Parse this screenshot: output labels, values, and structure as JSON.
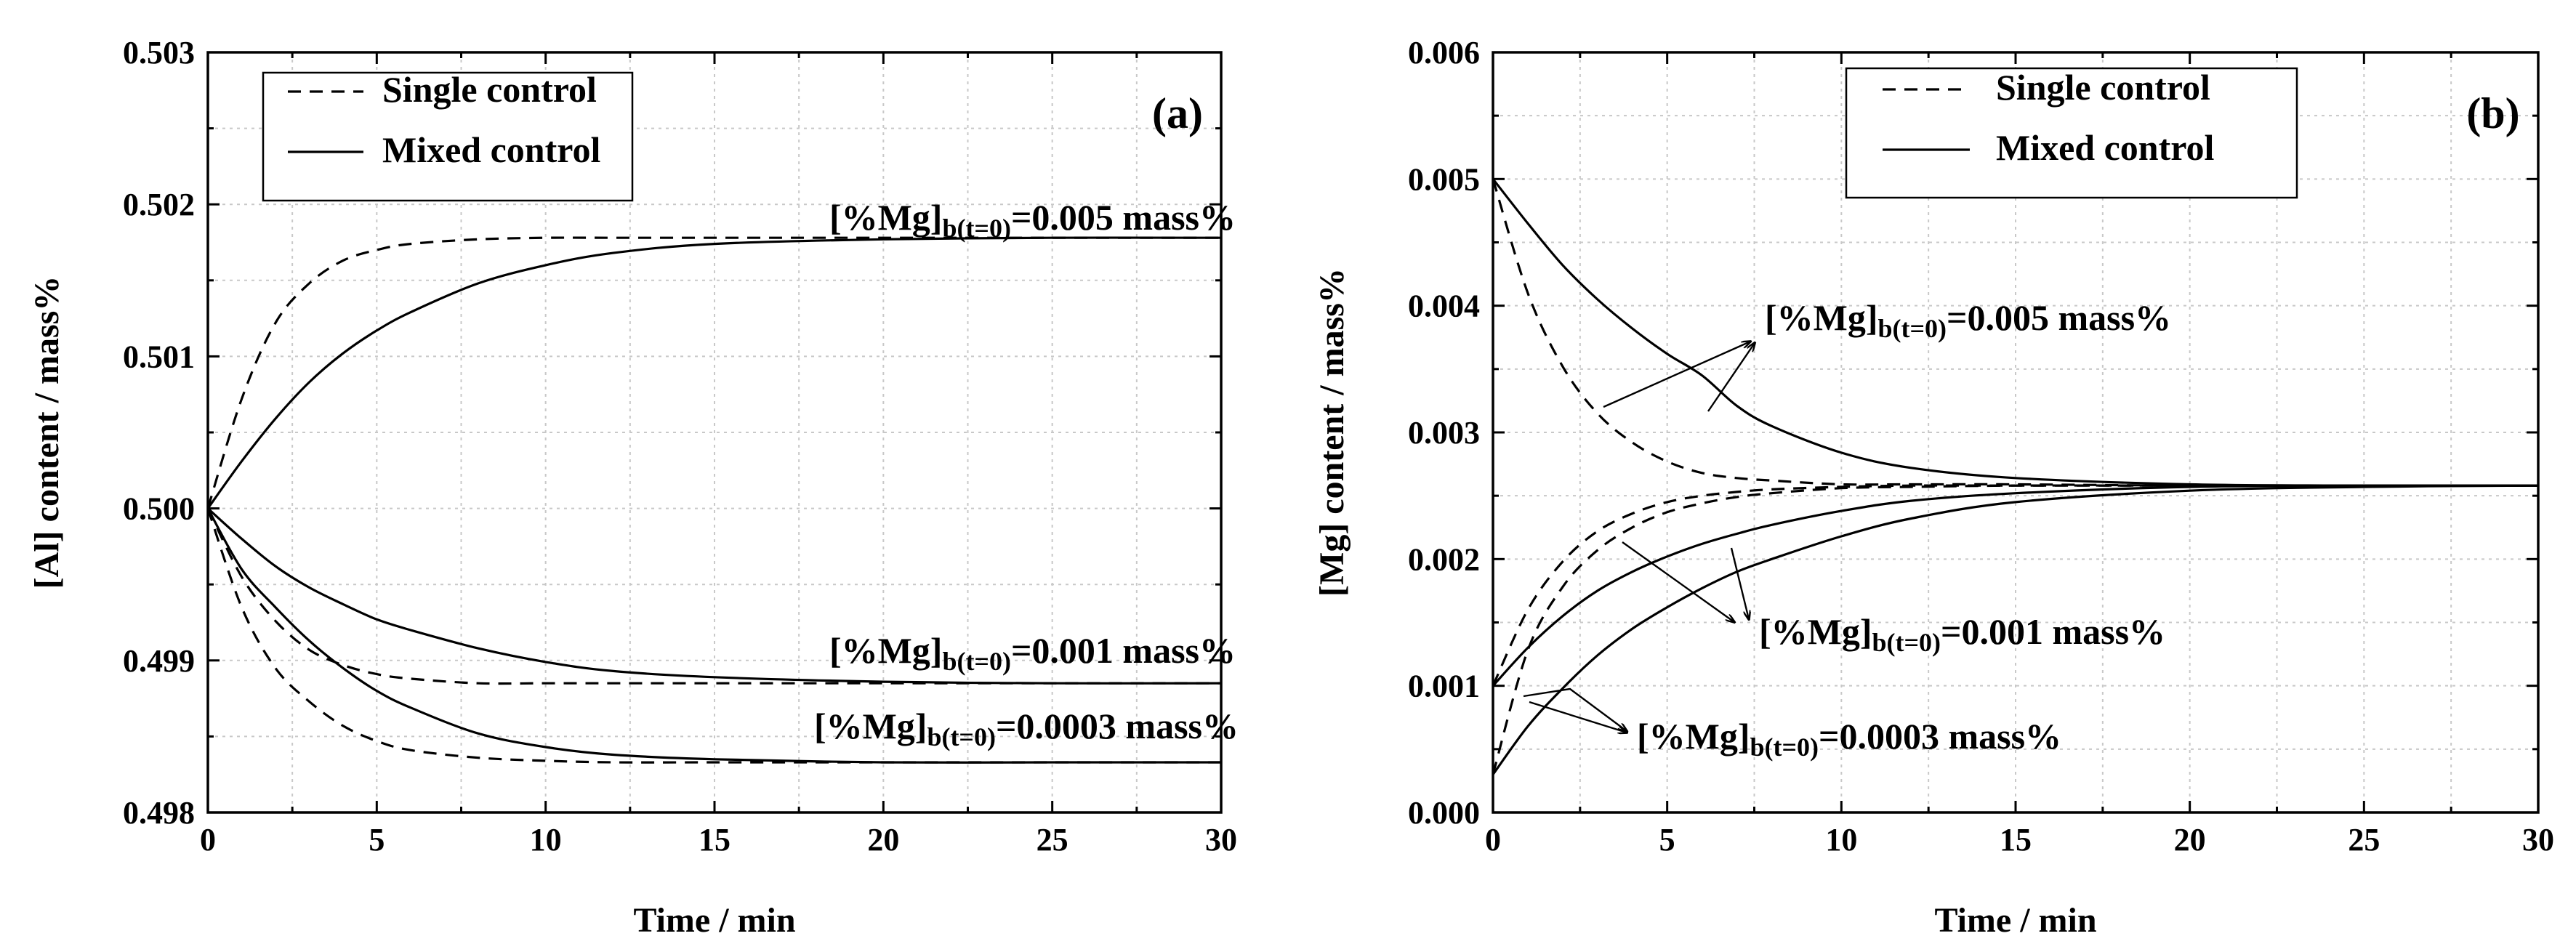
{
  "chart_data": [
    {
      "type": "line",
      "panel_label": "(a)",
      "xlabel": "Time / min",
      "ylabel": "[Al] content / mass%",
      "xlim": [
        0,
        30
      ],
      "ylim": [
        0.498,
        0.503
      ],
      "xticks": [
        "0",
        "5",
        "10",
        "15",
        "20",
        "25",
        "30"
      ],
      "yticks": [
        "0.498",
        "0.499",
        "0.500",
        "0.501",
        "0.502",
        "0.503"
      ],
      "grid": true,
      "legend_position": "top-left",
      "legend": [
        {
          "label": "Single control",
          "style": "dashed"
        },
        {
          "label": "Mixed control",
          "style": "solid"
        }
      ],
      "annotations": [
        {
          "prefix": "[%Mg]",
          "sub": "b(t=0)",
          "suffix": "=0.005 mass%"
        },
        {
          "prefix": "[%Mg]",
          "sub": "b(t=0)",
          "suffix": "=0.001 mass%"
        },
        {
          "prefix": "[%Mg]",
          "sub": "b(t=0)",
          "suffix": "=0.0003 mass%"
        }
      ],
      "series": [
        {
          "name": "Single control, [%Mg]b(t=0)=0.005 mass%",
          "style": "dashed",
          "x": [
            0,
            1,
            2,
            3,
            4,
            5,
            6,
            8,
            10,
            12,
            15,
            20,
            25,
            30
          ],
          "values": [
            0.5,
            0.50072,
            0.50122,
            0.50148,
            0.50163,
            0.5017,
            0.50174,
            0.50177,
            0.50178,
            0.50178,
            0.50178,
            0.50178,
            0.50178,
            0.50178
          ]
        },
        {
          "name": "Mixed control, [%Mg]b(t=0)=0.005 mass%",
          "style": "solid",
          "x": [
            0,
            1,
            2,
            3,
            4,
            5,
            6,
            8,
            10,
            12,
            15,
            20,
            25,
            30
          ],
          "values": [
            0.5,
            0.50031,
            0.50059,
            0.50083,
            0.50102,
            0.50117,
            0.50129,
            0.50148,
            0.5016,
            0.50168,
            0.50174,
            0.50177,
            0.50178,
            0.50178
          ]
        },
        {
          "name": "Single control, [%Mg]b(t=0)=0.001 mass%",
          "style": "dashed",
          "x": [
            0,
            1,
            2,
            3,
            4,
            5,
            6,
            8,
            10,
            12,
            15,
            20,
            25,
            30
          ],
          "values": [
            0.5,
            0.49955,
            0.49926,
            0.49907,
            0.49897,
            0.49891,
            0.49888,
            0.49885,
            0.49885,
            0.49885,
            0.49885,
            0.49885,
            0.49885,
            0.49885
          ]
        },
        {
          "name": "Mixed control, [%Mg]b(t=0)=0.001 mass%",
          "style": "solid",
          "x": [
            0,
            1,
            2,
            3,
            4,
            5,
            6,
            8,
            10,
            12,
            15,
            20,
            25,
            30
          ],
          "values": [
            0.5,
            0.4998,
            0.49962,
            0.49948,
            0.49937,
            0.49927,
            0.4992,
            0.49908,
            0.49899,
            0.49893,
            0.49889,
            0.49886,
            0.49885,
            0.49885
          ]
        },
        {
          "name": "Single control, [%Mg]b(t=0)=0.0003 mass%",
          "style": "dashed",
          "x": [
            0,
            1,
            2,
            3,
            4,
            5,
            6,
            8,
            10,
            12,
            15,
            20,
            25,
            30
          ],
          "values": [
            0.5,
            0.49935,
            0.49895,
            0.49873,
            0.49857,
            0.49847,
            0.49841,
            0.49836,
            0.49834,
            0.49833,
            0.49833,
            0.49833,
            0.49833,
            0.49833
          ]
        },
        {
          "name": "Mixed control, [%Mg]b(t=0)=0.0003 mass%",
          "style": "solid",
          "x": [
            0,
            1,
            2,
            3,
            4,
            5,
            6,
            8,
            10,
            12,
            15,
            20,
            25,
            30
          ],
          "values": [
            0.5,
            0.4996,
            0.49935,
            0.49913,
            0.49895,
            0.4988,
            0.49869,
            0.49852,
            0.49843,
            0.49838,
            0.49835,
            0.49833,
            0.49833,
            0.49833
          ]
        }
      ]
    },
    {
      "type": "line",
      "panel_label": "(b)",
      "xlabel": "Time / min",
      "ylabel": "[Mg] content / mass%",
      "xlim": [
        0,
        30
      ],
      "ylim": [
        0,
        0.006
      ],
      "xticks": [
        "0",
        "5",
        "10",
        "15",
        "20",
        "25",
        "30"
      ],
      "yticks": [
        "0.000",
        "0.001",
        "0.002",
        "0.003",
        "0.004",
        "0.005",
        "0.006"
      ],
      "grid": true,
      "legend_position": "top-center",
      "legend": [
        {
          "label": "Single control",
          "style": "dashed"
        },
        {
          "label": "Mixed control",
          "style": "solid"
        }
      ],
      "annotations": [
        {
          "prefix": "[%Mg]",
          "sub": "b(t=0)",
          "suffix": "=0.005 mass%"
        },
        {
          "prefix": "[%Mg]",
          "sub": "b(t=0)",
          "suffix": "=0.001 mass%"
        },
        {
          "prefix": "[%Mg]",
          "sub": "b(t=0)",
          "suffix": "=0.0003 mass%"
        }
      ],
      "series": [
        {
          "name": "Single control, [%Mg]b(t=0)=0.005 mass%",
          "style": "dashed",
          "x": [
            0,
            1,
            2,
            3,
            4,
            5,
            6,
            7,
            8,
            10,
            12,
            15,
            20,
            25,
            30
          ],
          "values": [
            0.005,
            0.0041,
            0.00352,
            0.00315,
            0.00292,
            0.00277,
            0.00268,
            0.00264,
            0.00262,
            0.00259,
            0.00259,
            0.00259,
            0.00258,
            0.00258,
            0.00258
          ]
        },
        {
          "name": "Mixed control, [%Mg]b(t=0)=0.005 mass%",
          "style": "solid",
          "x": [
            0,
            1,
            2,
            3,
            4,
            5,
            6,
            7,
            8,
            10,
            12,
            15,
            20,
            25,
            30
          ],
          "values": [
            0.005,
            0.00465,
            0.00432,
            0.00405,
            0.00382,
            0.00362,
            0.00345,
            0.00321,
            0.00305,
            0.00284,
            0.00272,
            0.00264,
            0.00259,
            0.00258,
            0.00258
          ]
        },
        {
          "name": "Single control, [%Mg]b(t=0)=0.001 mass%",
          "style": "dashed",
          "x": [
            0,
            1,
            2,
            3,
            4,
            5,
            6,
            7,
            8,
            10,
            12,
            15,
            20,
            25,
            30
          ],
          "values": [
            0.001,
            0.0016,
            0.00198,
            0.00222,
            0.00236,
            0.00245,
            0.0025,
            0.00253,
            0.00255,
            0.00257,
            0.00258,
            0.00258,
            0.00258,
            0.00258,
            0.00258
          ]
        },
        {
          "name": "Mixed control, [%Mg]b(t=0)=0.001 mass%",
          "style": "solid",
          "x": [
            0,
            1,
            2,
            3,
            4,
            5,
            6,
            7,
            8,
            10,
            12,
            15,
            20,
            25,
            30
          ],
          "values": [
            0.001,
            0.0013,
            0.00155,
            0.00175,
            0.0019,
            0.00202,
            0.00212,
            0.0022,
            0.00227,
            0.00238,
            0.00246,
            0.00252,
            0.00257,
            0.00258,
            0.00258
          ]
        },
        {
          "name": "Single control, [%Mg]b(t=0)=0.0003 mass%",
          "style": "dashed",
          "x": [
            0,
            1,
            2,
            3,
            4,
            5,
            6,
            7,
            8,
            10,
            12,
            15,
            20,
            25,
            30
          ],
          "values": [
            0.0003,
            0.00128,
            0.00178,
            0.00207,
            0.00225,
            0.00237,
            0.00244,
            0.00249,
            0.00252,
            0.00256,
            0.00257,
            0.00258,
            0.00258,
            0.00258,
            0.00258
          ]
        },
        {
          "name": "Mixed control, [%Mg]b(t=0)=0.0003 mass%",
          "style": "solid",
          "x": [
            0,
            1,
            2,
            3,
            4,
            5,
            6,
            7,
            8,
            10,
            12,
            15,
            20,
            25,
            30
          ],
          "values": [
            0.0003,
            0.00068,
            0.00098,
            0.00124,
            0.00145,
            0.00162,
            0.00177,
            0.0019,
            0.002,
            0.00218,
            0.00232,
            0.00245,
            0.00254,
            0.00257,
            0.00258
          ]
        }
      ]
    }
  ]
}
